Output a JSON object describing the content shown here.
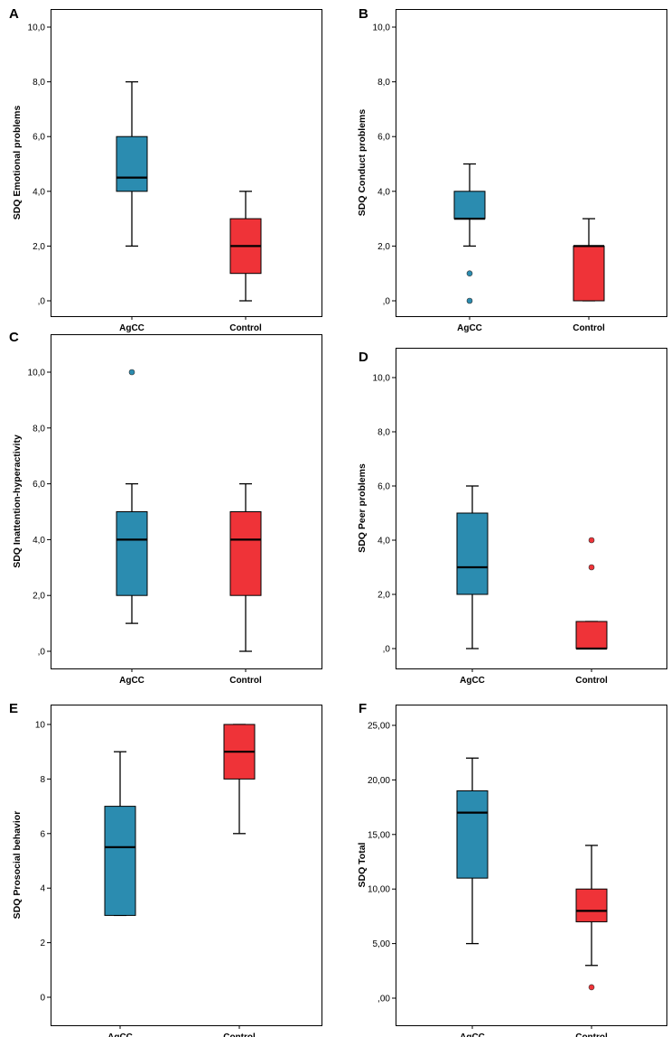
{
  "chart_data": [
    {
      "panel": "A",
      "type": "box",
      "ylabel": "SDQ Emotional problems",
      "ylim": [
        0,
        10
      ],
      "yticks": [
        0,
        2,
        4,
        6,
        8,
        10
      ],
      "ytick_labels": [
        ",0",
        "2,0",
        "4,0",
        "6,0",
        "8,0",
        "10,0"
      ],
      "groups": [
        {
          "name": "AgCC",
          "color": "#2b8cb0",
          "whisker_low": 2,
          "q1": 4,
          "median": 4.5,
          "q3": 6,
          "whisker_high": 8,
          "outliers": []
        },
        {
          "name": "Control",
          "color": "#ef3338",
          "whisker_low": 0,
          "q1": 1,
          "median": 2,
          "q3": 3,
          "whisker_high": 4,
          "outliers": []
        }
      ]
    },
    {
      "panel": "B",
      "type": "box",
      "ylabel": "SDQ Conduct problems",
      "ylim": [
        0,
        10
      ],
      "yticks": [
        0,
        2,
        4,
        6,
        8,
        10
      ],
      "ytick_labels": [
        ",0",
        "2,0",
        "4,0",
        "6,0",
        "8,0",
        "10,0"
      ],
      "groups": [
        {
          "name": "AgCC",
          "color": "#2b8cb0",
          "whisker_low": 2,
          "q1": 3,
          "median": 3,
          "q3": 4,
          "whisker_high": 5,
          "outliers": [
            1,
            0
          ]
        },
        {
          "name": "Control",
          "color": "#ef3338",
          "whisker_low": 0,
          "q1": 0,
          "median": 2,
          "q3": 2,
          "whisker_high": 3,
          "outliers": []
        }
      ]
    },
    {
      "panel": "C",
      "type": "box",
      "ylabel": "SDQ Inattention-hyperactivity",
      "ylim": [
        0,
        10
      ],
      "yticks": [
        0,
        2,
        4,
        6,
        8,
        10
      ],
      "ytick_labels": [
        ",0",
        "2,0",
        "4,0",
        "6,0",
        "8,0",
        "10,0"
      ],
      "groups": [
        {
          "name": "AgCC",
          "color": "#2b8cb0",
          "whisker_low": 1,
          "q1": 2,
          "median": 4,
          "q3": 5,
          "whisker_high": 6,
          "outliers": [
            10
          ]
        },
        {
          "name": "Control",
          "color": "#ef3338",
          "whisker_low": 0,
          "q1": 2,
          "median": 4,
          "q3": 5,
          "whisker_high": 6,
          "outliers": []
        }
      ]
    },
    {
      "panel": "D",
      "type": "box",
      "ylabel": "SDQ Peer problems",
      "ylim": [
        0,
        10
      ],
      "yticks": [
        0,
        2,
        4,
        6,
        8,
        10
      ],
      "ytick_labels": [
        ",0",
        "2,0",
        "4,0",
        "6,0",
        "8,0",
        "10,0"
      ],
      "groups": [
        {
          "name": "AgCC",
          "color": "#2b8cb0",
          "whisker_low": 0,
          "q1": 2,
          "median": 3,
          "q3": 5,
          "whisker_high": 6,
          "outliers": []
        },
        {
          "name": "Control",
          "color": "#ef3338",
          "whisker_low": 0,
          "q1": 0,
          "median": 0,
          "q3": 1,
          "whisker_high": 1,
          "outliers": [
            4,
            3
          ]
        }
      ]
    },
    {
      "panel": "E",
      "type": "box",
      "ylabel": "SDQ Prosocial behavior",
      "ylim": [
        0,
        10
      ],
      "yticks": [
        0,
        2,
        4,
        6,
        8,
        10
      ],
      "ytick_labels": [
        "0",
        "2",
        "4",
        "6",
        "8",
        "10"
      ],
      "groups": [
        {
          "name": "AgCC",
          "color": "#2b8cb0",
          "whisker_low": 3,
          "q1": 3,
          "median": 5.5,
          "q3": 7,
          "whisker_high": 9,
          "outliers": []
        },
        {
          "name": "Control",
          "color": "#ef3338",
          "whisker_low": 6,
          "q1": 8,
          "median": 9,
          "q3": 10,
          "whisker_high": 10,
          "outliers": []
        }
      ]
    },
    {
      "panel": "F",
      "type": "box",
      "ylabel": "SDQ Total",
      "ylim": [
        0,
        25
      ],
      "yticks": [
        0,
        5,
        10,
        15,
        20,
        25
      ],
      "ytick_labels": [
        ",00",
        "5,00",
        "10,00",
        "15,00",
        "20,00",
        "25,00"
      ],
      "groups": [
        {
          "name": "AgCC",
          "color": "#2b8cb0",
          "whisker_low": 5,
          "q1": 11,
          "median": 17,
          "q3": 19,
          "whisker_high": 22,
          "outliers": []
        },
        {
          "name": "Control",
          "color": "#ef3338",
          "whisker_low": 3,
          "q1": 7,
          "median": 8,
          "q3": 10,
          "whisker_high": 14,
          "outliers": [
            1
          ]
        }
      ]
    }
  ]
}
